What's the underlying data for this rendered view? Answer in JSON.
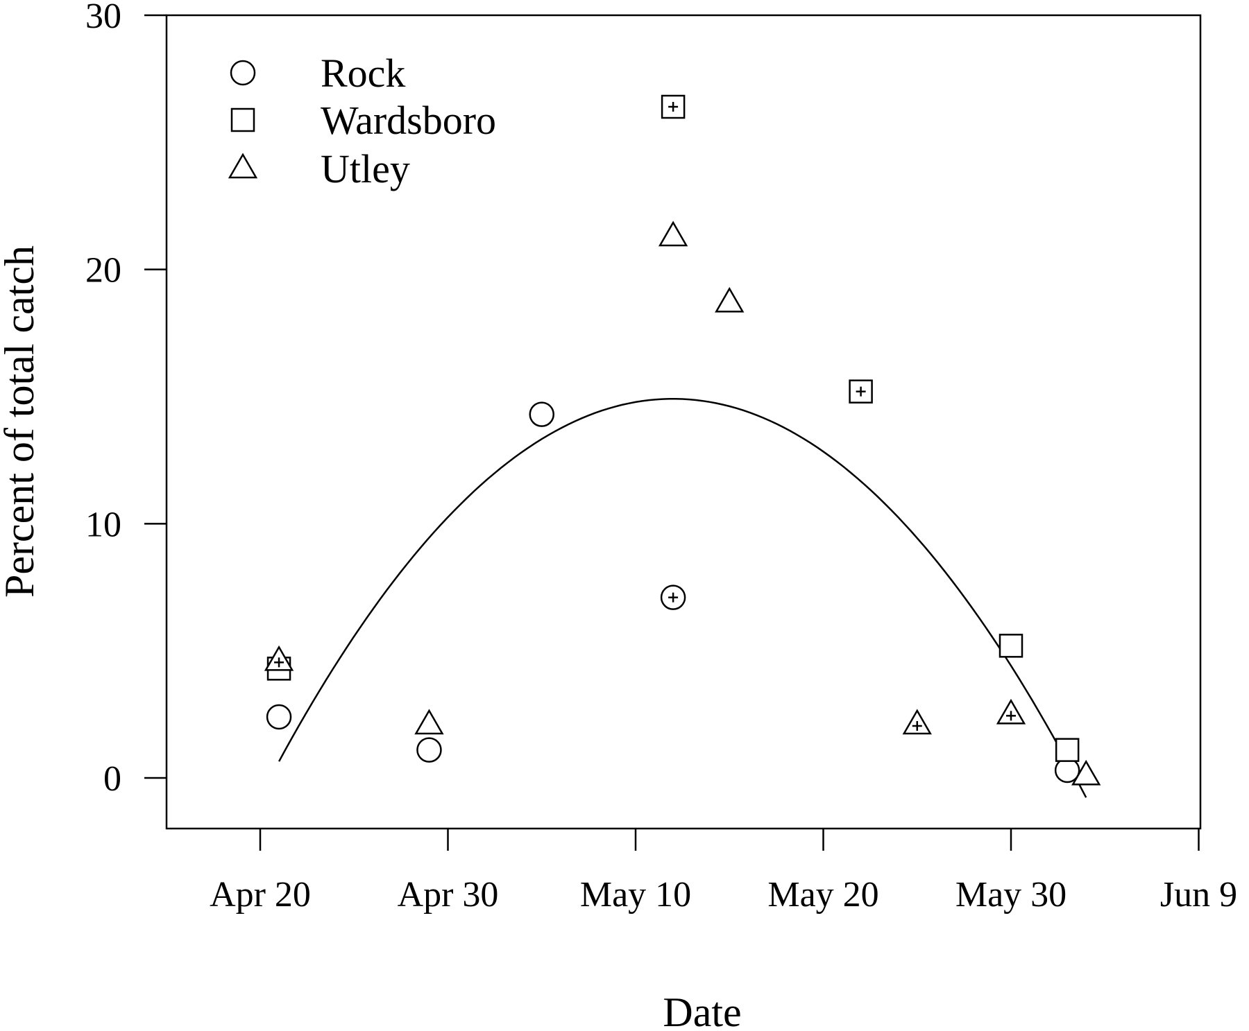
{
  "chart_data": {
    "type": "scatter",
    "title": "",
    "xlabel": "Date",
    "ylabel": "Percent of total catch",
    "x_axis": {
      "scale": "date",
      "range": [
        "Apr 15",
        "Jun 9"
      ],
      "ticks": [
        "Apr 20",
        "Apr 30",
        "May 10",
        "May 20",
        "May 30",
        "Jun 9"
      ]
    },
    "y_axis": {
      "range": [
        -2,
        30
      ],
      "ticks": [
        0,
        10,
        20,
        30
      ]
    },
    "grid": false,
    "legend": {
      "position": "top-left"
    },
    "series": [
      {
        "name": "Rock",
        "marker": "circle",
        "points": [
          {
            "x": "Apr 21",
            "y": 2.4,
            "crossed": false
          },
          {
            "x": "Apr 29",
            "y": 1.1,
            "crossed": false
          },
          {
            "x": "May 5",
            "y": 14.3,
            "crossed": false
          },
          {
            "x": "May 12",
            "y": 7.1,
            "crossed": true
          },
          {
            "x": "Jun 2",
            "y": 0.3,
            "crossed": false
          }
        ]
      },
      {
        "name": "Wardsboro",
        "marker": "square",
        "points": [
          {
            "x": "Apr 21",
            "y": 4.3,
            "crossed": false
          },
          {
            "x": "May 12",
            "y": 26.4,
            "crossed": true
          },
          {
            "x": "May 22",
            "y": 15.2,
            "crossed": true
          },
          {
            "x": "May 30",
            "y": 5.2,
            "crossed": false
          },
          {
            "x": "Jun 2",
            "y": 1.1,
            "crossed": false
          }
        ]
      },
      {
        "name": "Utley",
        "marker": "triangle",
        "points": [
          {
            "x": "Apr 21",
            "y": 4.6,
            "crossed": true
          },
          {
            "x": "Apr 29",
            "y": 2.1,
            "crossed": false
          },
          {
            "x": "May 12",
            "y": 21.3,
            "crossed": false
          },
          {
            "x": "May 15",
            "y": 18.7,
            "crossed": false
          },
          {
            "x": "May 25",
            "y": 2.1,
            "crossed": true
          },
          {
            "x": "May 30",
            "y": 2.5,
            "crossed": true
          },
          {
            "x": "Jun 3",
            "y": 0.1,
            "crossed": false
          }
        ]
      }
    ],
    "fit_curve": {
      "type": "quadratic",
      "x_range": [
        "Apr 21",
        "Jun 3"
      ],
      "points": [
        {
          "x": "Apr 21",
          "y": 1.1
        },
        {
          "x": "Apr 26",
          "y": 6.3
        },
        {
          "x": "May 1",
          "y": 10.6
        },
        {
          "x": "May 6",
          "y": 13.6
        },
        {
          "x": "May 11",
          "y": 15.1
        },
        {
          "x": "May 16",
          "y": 14.6
        },
        {
          "x": "May 21",
          "y": 12.4
        },
        {
          "x": "May 26",
          "y": 8.6
        },
        {
          "x": "May 31",
          "y": 3.3
        },
        {
          "x": "Jun 3",
          "y": -1.0
        }
      ]
    }
  }
}
